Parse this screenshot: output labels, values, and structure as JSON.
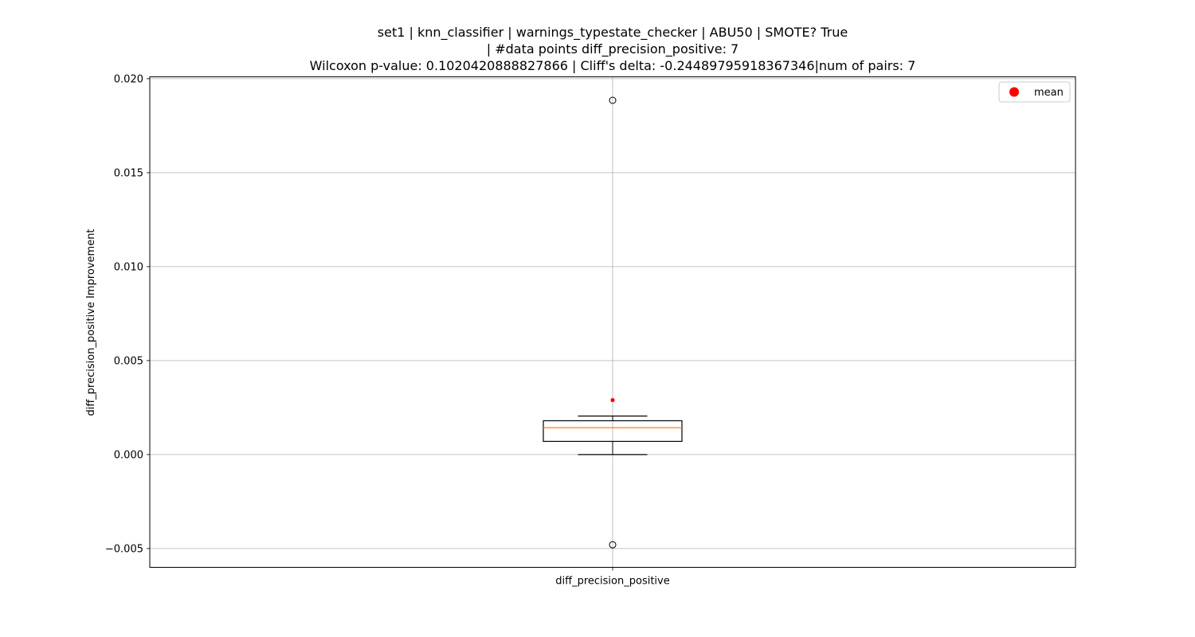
{
  "chart_data": {
    "type": "box",
    "title_lines": [
      "set1 | knn_classifier | warnings_typestate_checker | ABU50 | SMOTE? True",
      "| #data points diff_precision_positive: 7",
      "Wilcoxon p-value: 0.1020420888827866 | Cliff's delta: -0.24489795918367346|num of pairs: 7"
    ],
    "xlabel": "",
    "ylabel": "diff_precision_positive Improvement",
    "categories": [
      "diff_precision_positive"
    ],
    "ylim": [
      -0.006,
      0.0201
    ],
    "yticks": [
      -0.005,
      0.0,
      0.005,
      0.01,
      0.015,
      0.02
    ],
    "ytick_labels": [
      "−0.005",
      "0.000",
      "0.005",
      "0.010",
      "0.015",
      "0.020"
    ],
    "grid": true,
    "legend": {
      "position": "top-right",
      "entries": [
        {
          "label": "mean",
          "color": "#ff0000",
          "marker": "circle"
        }
      ]
    },
    "boxes": [
      {
        "category": "diff_precision_positive",
        "whisker_low": 0.0,
        "q1": 0.0007,
        "median": 0.00143,
        "q3": 0.0018,
        "whisker_high": 0.00205,
        "outliers": [
          0.01885,
          -0.0048
        ],
        "mean": 0.0029
      }
    ],
    "colors": {
      "box": "#000000",
      "median": "#ff7f0e",
      "mean": "#ff0000",
      "grid": "#b0b0b0"
    }
  }
}
